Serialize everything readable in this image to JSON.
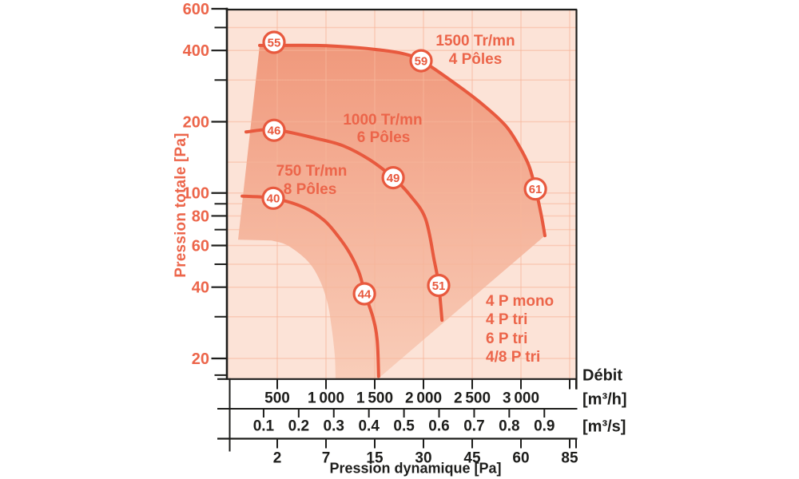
{
  "colors": {
    "accent_curve": "#E8593E",
    "accent_text": "#EC654A",
    "axis_dark": "#1D1D1B",
    "plot_background": "#FCE3D7",
    "envelope_gradient_top": "#F0987B",
    "envelope_gradient_bottom": "#F9CEBA",
    "grid_line": "#F5B69B",
    "marker_fill": "#FFFFFF"
  },
  "chart_data": {
    "type": "line",
    "y_axis": {
      "title": "Pression totale [Pa]",
      "scale": "log",
      "min": 16.5,
      "max": 600,
      "major_ticks": [
        600,
        400,
        200,
        100,
        80,
        60,
        40,
        20
      ],
      "minor_ticks": [
        500,
        300,
        90,
        70,
        50,
        30,
        17
      ],
      "grid_values": [
        500,
        400,
        300,
        200,
        135,
        100,
        90,
        80,
        70,
        60,
        50,
        40,
        30,
        20
      ]
    },
    "x_axes": [
      {
        "title": "Débit",
        "unit": "[m³/h]",
        "tick_values": [
          500,
          1000,
          1500,
          2000,
          2500,
          3000
        ],
        "tick_labels": [
          "500",
          "1 000",
          "1 500",
          "2 000",
          "2 500",
          "3 000"
        ],
        "minor_tick_values": [
          3500
        ],
        "grid_values": [
          500,
          1000,
          1500,
          2000,
          2500,
          3000,
          3500
        ]
      },
      {
        "unit": "[m³/s]",
        "tick_values": [
          0.1,
          0.2,
          0.3,
          0.4,
          0.5,
          0.6,
          0.7,
          0.8,
          0.9
        ],
        "tick_labels": [
          "0.1",
          "0.2",
          "0.3",
          "0.4",
          "0.5",
          "0.6",
          "0.7",
          "0.8",
          "0.9"
        ]
      },
      {
        "title": "Pression dynamique [Pa]",
        "tick_labels": [
          "2",
          "7",
          "15",
          "30",
          "45",
          "60",
          "85"
        ],
        "positions_debit": [
          500,
          1000,
          1500,
          2000,
          2500,
          3000,
          3500
        ]
      }
    ],
    "series": [
      {
        "rpm": "1500 Tr/mn",
        "poles": "4 Pôles",
        "points": [
          [
            320,
            420
          ],
          [
            900,
            420
          ],
          [
            1350,
            410
          ],
          [
            1750,
            391
          ],
          [
            1980,
            362
          ],
          [
            2330,
            289
          ],
          [
            2600,
            238
          ],
          [
            2840,
            193
          ],
          [
            2980,
            158
          ],
          [
            3080,
            131
          ],
          [
            3150,
            104
          ],
          [
            3205,
            82
          ],
          [
            3246,
            66
          ]
        ],
        "markers": [
          {
            "label": "55",
            "debit": 467,
            "pression": 433
          },
          {
            "label": "59",
            "debit": 1975,
            "pression": 362
          },
          {
            "label": "61",
            "debit": 3148,
            "pression": 104
          }
        ]
      },
      {
        "rpm": "1000 Tr/mn",
        "poles": "6 Pôles",
        "points": [
          [
            180,
            181
          ],
          [
            470,
            185
          ],
          [
            900,
            170
          ],
          [
            1180,
            158
          ],
          [
            1450,
            138
          ],
          [
            1690,
            116
          ],
          [
            1860,
            98
          ],
          [
            2020,
            78
          ],
          [
            2110,
            52
          ],
          [
            2156,
            41
          ],
          [
            2190,
            29
          ]
        ],
        "markers": [
          {
            "label": "46",
            "debit": 467,
            "pression": 184
          },
          {
            "label": "49",
            "debit": 1689,
            "pression": 116
          },
          {
            "label": "51",
            "debit": 2156,
            "pression": 40.7
          }
        ]
      },
      {
        "rpm": "750 Tr/mn",
        "poles": "8 Pôles",
        "points": [
          [
            140,
            97
          ],
          [
            460,
            95
          ],
          [
            770,
            87
          ],
          [
            975,
            77
          ],
          [
            1120,
            66
          ],
          [
            1240,
            56
          ],
          [
            1340,
            46
          ],
          [
            1400,
            37.5
          ],
          [
            1480,
            30
          ],
          [
            1525,
            24
          ],
          [
            1540,
            16.8
          ]
        ],
        "markers": [
          {
            "label": "40",
            "debit": 459,
            "pression": 95
          },
          {
            "label": "44",
            "debit": 1394,
            "pression": 37.5
          }
        ]
      }
    ],
    "envelope": {
      "lower_boundary": [
        [
          320,
          420
        ],
        [
          98,
          63.5
        ],
        [
          443,
          63
        ],
        [
          607,
          60
        ],
        [
          811,
          51.6
        ],
        [
          934,
          43
        ],
        [
          1016,
          34.2
        ],
        [
          1057,
          27.1
        ],
        [
          1090,
          20.6
        ],
        [
          1098,
          16.4
        ],
        [
          1533,
          16.4
        ]
      ],
      "diagonal_top": [
        3246,
        66
      ]
    },
    "motor_options": [
      "4 P mono",
      "4 P tri",
      "6 P tri",
      "4/8 P tri"
    ]
  }
}
